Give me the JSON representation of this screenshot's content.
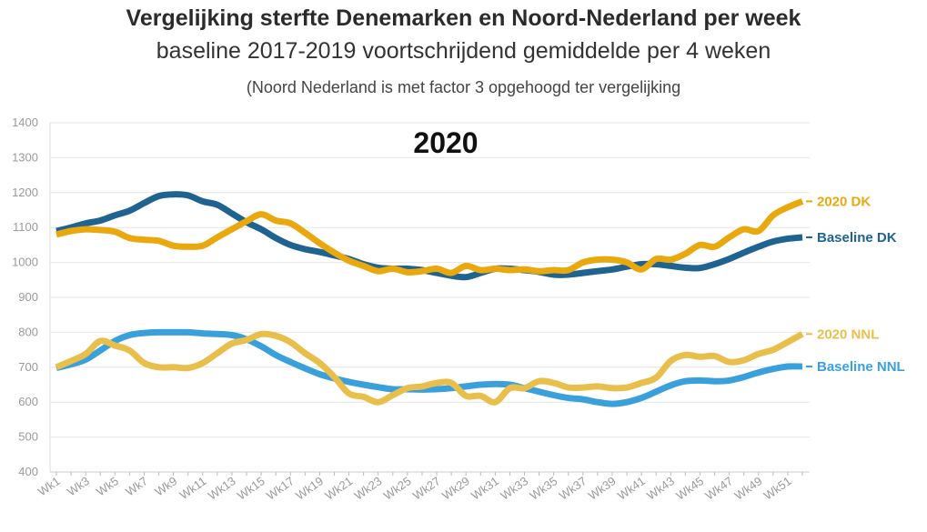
{
  "chart_data": {
    "type": "line",
    "title": "Vergelijking sterfte Denemarken en Noord-Nederland per week",
    "subtitle": "baseline 2017-2019 voortschrijdend gemiddelde per 4 weken",
    "note": "(Noord Nederland is met factor 3 opgehoogd ter vergelijking",
    "year_label": "2020",
    "xlabel": "",
    "ylabel": "",
    "ylim": [
      400,
      1400
    ],
    "yticks": [
      400,
      500,
      600,
      700,
      800,
      900,
      1000,
      1100,
      1200,
      1300,
      1400
    ],
    "x": [
      1,
      2,
      3,
      4,
      5,
      6,
      7,
      8,
      9,
      10,
      11,
      12,
      13,
      14,
      15,
      16,
      17,
      18,
      19,
      20,
      21,
      22,
      23,
      24,
      25,
      26,
      27,
      28,
      29,
      30,
      31,
      32,
      33,
      34,
      35,
      36,
      37,
      38,
      39,
      40,
      41,
      42,
      43,
      44,
      45,
      46,
      47,
      48,
      49,
      50,
      51,
      52
    ],
    "xtick_labels": [
      "Wk1",
      "Wk3",
      "Wk5",
      "Wk7",
      "Wk9",
      "Wk11",
      "Wk13",
      "Wk15",
      "Wk17",
      "Wk19",
      "Wk21",
      "Wk23",
      "Wk25",
      "Wk27",
      "Wk29",
      "Wk31",
      "Wk33",
      "Wk35",
      "Wk37",
      "Wk39",
      "Wk41",
      "Wk43",
      "Wk45",
      "Wk47",
      "Wk49",
      "Wk51"
    ],
    "series": [
      {
        "name": "Baseline DK",
        "color": "#1f6391",
        "values": [
          1090,
          1100,
          1112,
          1120,
          1135,
          1148,
          1170,
          1190,
          1195,
          1192,
          1175,
          1165,
          1140,
          1115,
          1095,
          1070,
          1050,
          1038,
          1030,
          1020,
          1010,
          995,
          985,
          982,
          982,
          978,
          970,
          962,
          958,
          970,
          982,
          982,
          978,
          973,
          965,
          965,
          970,
          975,
          980,
          988,
          995,
          995,
          990,
          985,
          984,
          995,
          1010,
          1028,
          1045,
          1060,
          1068,
          1072
        ]
      },
      {
        "name": "2020 DK",
        "color": "#e8a80e",
        "values": [
          1080,
          1090,
          1095,
          1093,
          1088,
          1070,
          1065,
          1062,
          1048,
          1045,
          1048,
          1072,
          1095,
          1118,
          1138,
          1120,
          1112,
          1085,
          1055,
          1028,
          1005,
          990,
          975,
          982,
          972,
          975,
          982,
          970,
          990,
          978,
          982,
          978,
          980,
          975,
          978,
          978,
          1000,
          1008,
          1008,
          1000,
          980,
          1010,
          1008,
          1025,
          1050,
          1045,
          1072,
          1095,
          1090,
          1135,
          1158,
          1175
        ]
      },
      {
        "name": "Baseline NNL",
        "color": "#3aa0dc",
        "values": [
          698,
          708,
          722,
          748,
          775,
          792,
          798,
          800,
          800,
          800,
          797,
          795,
          792,
          780,
          760,
          735,
          715,
          697,
          680,
          668,
          658,
          650,
          643,
          637,
          637,
          636,
          637,
          640,
          645,
          650,
          652,
          650,
          640,
          630,
          620,
          612,
          608,
          600,
          595,
          600,
          612,
          630,
          648,
          660,
          662,
          660,
          662,
          672,
          685,
          695,
          702,
          702
        ]
      },
      {
        "name": "2020 NNL",
        "color": "#e9bf4c",
        "values": [
          700,
          718,
          738,
          775,
          762,
          748,
          712,
          700,
          700,
          698,
          712,
          740,
          768,
          778,
          795,
          790,
          772,
          740,
          712,
          672,
          625,
          615,
          600,
          620,
          640,
          645,
          655,
          655,
          618,
          618,
          600,
          640,
          640,
          660,
          655,
          642,
          642,
          645,
          640,
          642,
          655,
          670,
          718,
          735,
          730,
          732,
          715,
          720,
          738,
          750,
          772,
          795
        ]
      }
    ],
    "series_labels": [
      "2020 DK",
      "Baseline DK",
      "2020 NNL",
      "Baseline NNL"
    ],
    "legend": "right-end labels",
    "grid": true
  }
}
